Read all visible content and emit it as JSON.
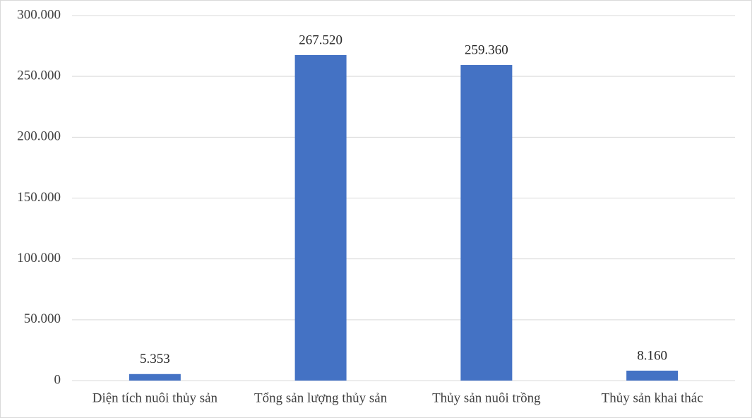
{
  "chart_data": {
    "type": "bar",
    "categories": [
      "Diện tích nuôi thủy sản",
      "Tổng sản lượng thủy sản",
      "Thủy sản nuôi trồng",
      "Thủy sản khai thác"
    ],
    "values": [
      5353,
      267520,
      259360,
      8160
    ],
    "value_labels": [
      "5.353",
      "267.520",
      "259.360",
      "8.160"
    ],
    "color": "#4472c4",
    "ylim": [
      0,
      300000
    ],
    "yticks": [
      0,
      {
        "value": 50000,
        "label": "50.000"
      },
      {
        "value": 100000,
        "label": "100.000"
      },
      {
        "value": 150000,
        "label": "150.000"
      },
      {
        "value": 200000,
        "label": "200.000"
      },
      {
        "value": 250000,
        "label": "250.000"
      },
      {
        "value": 300000,
        "label": "300.000"
      }
    ],
    "grid": true
  }
}
